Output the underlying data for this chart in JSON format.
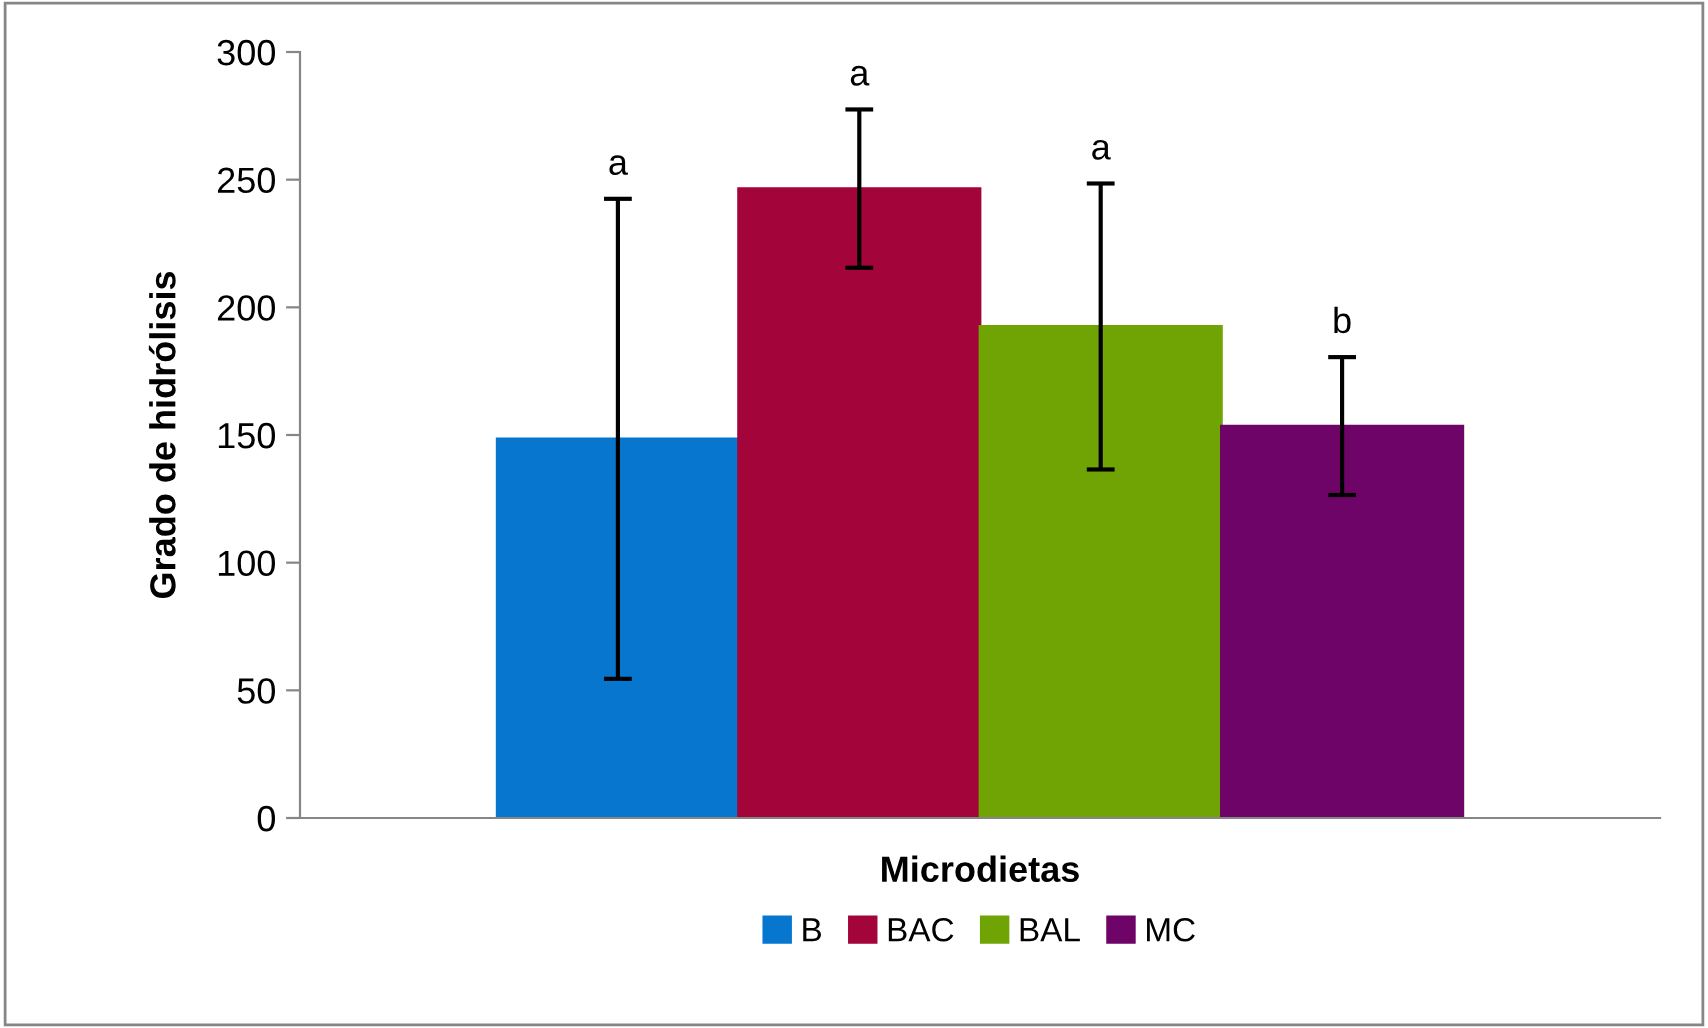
{
  "chart_data": {
    "type": "bar",
    "xlabel": "Microdietas",
    "ylabel": "Grado de hidrólisis",
    "categories": [
      null
    ],
    "series": [
      {
        "name": "B",
        "color": "#0676cf",
        "values": [
          148.5
        ],
        "errors": [
          94
        ]
      },
      {
        "name": "BAC",
        "color": "#a3053a",
        "values": [
          246.5
        ],
        "errors": [
          31
        ]
      },
      {
        "name": "BAL",
        "color": "#70a404",
        "values": [
          192.5
        ],
        "errors": [
          56
        ]
      },
      {
        "name": "MC",
        "color": "#6e0468",
        "values": [
          153.5
        ],
        "errors": [
          27
        ]
      }
    ],
    "annotations": [
      "a",
      "a",
      "a",
      "b"
    ],
    "ylim": [
      0,
      300
    ],
    "yticks": [
      0,
      50,
      100,
      150,
      200,
      250,
      300
    ],
    "grid": false,
    "legend": "bottom"
  }
}
